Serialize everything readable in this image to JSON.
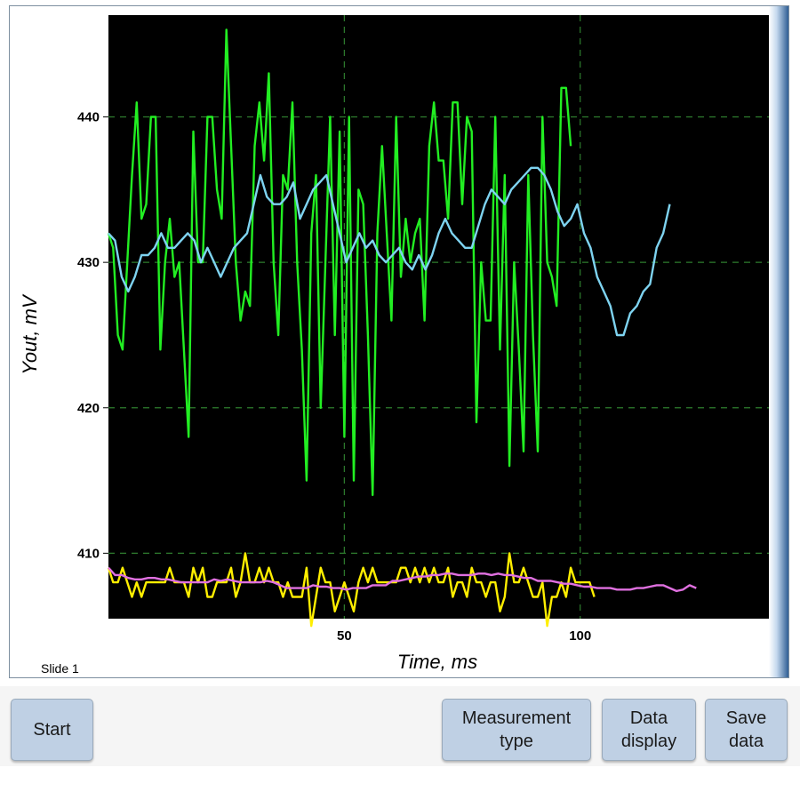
{
  "slide_label": "Slide 1",
  "buttons": {
    "start": "Start",
    "measurement_type": "Measurement\ntype",
    "data_display": "Data\ndisplay",
    "save_data": "Save\ndata"
  },
  "chart_data": {
    "type": "line",
    "xlabel": "Time, ms",
    "ylabel": "Yout, mV",
    "xlim": [
      0,
      140
    ],
    "ylim": [
      405.5,
      447
    ],
    "x_ticks": [
      50,
      100
    ],
    "y_ticks": [
      410,
      420,
      430,
      440
    ],
    "grid": true,
    "colors": {
      "background": "#000000",
      "grid": "#2e7d2e",
      "raw_top": "#22ee22",
      "avg_top": "#7ed3f0",
      "raw_bottom": "#ffee00",
      "avg_bottom": "#e070e0"
    },
    "series": [
      {
        "key": "raw_top",
        "x_start": 0,
        "x_step": 1,
        "values": [
          432,
          431,
          425,
          424,
          430,
          436,
          441,
          433,
          434,
          440,
          440,
          424,
          430,
          433,
          429,
          430,
          424,
          418,
          439,
          430,
          430,
          440,
          440,
          435,
          433,
          446,
          438,
          430,
          426,
          428,
          427,
          438,
          441,
          437,
          443,
          430,
          425,
          436,
          435,
          441,
          430,
          424,
          415,
          432,
          436,
          420,
          430,
          440,
          425,
          439,
          418,
          440,
          415,
          435,
          434,
          425,
          414,
          432,
          438,
          432,
          426,
          440,
          429,
          433,
          430,
          432,
          433,
          426,
          438,
          441,
          437,
          437,
          433,
          441,
          441,
          434,
          440,
          439,
          419,
          430,
          426,
          426,
          440,
          424,
          436,
          416,
          430,
          424,
          417,
          436,
          425,
          417,
          440,
          430,
          429,
          427,
          442,
          442,
          438
        ]
      },
      {
        "key": "avg_top",
        "x_start": 0,
        "x_step": 1.4,
        "values": [
          432,
          431.5,
          429,
          428,
          429,
          430.5,
          430.5,
          431,
          432,
          431,
          431,
          431.5,
          432,
          431.5,
          430,
          431,
          430,
          429,
          430,
          431,
          431.5,
          432,
          434,
          436,
          434.5,
          434,
          434,
          434.5,
          435.5,
          433,
          434,
          435,
          435.5,
          436,
          434,
          432,
          430,
          431,
          432,
          431,
          431.5,
          430.5,
          430,
          430.5,
          431,
          430,
          429.5,
          430.5,
          429.5,
          430.5,
          432,
          433,
          432,
          431.5,
          431,
          431,
          432.5,
          434,
          435,
          434.5,
          434,
          435,
          435.5,
          436,
          436.5,
          436.5,
          436,
          435,
          433.5,
          432.5,
          433,
          434,
          432,
          431,
          429,
          428,
          427,
          425,
          425,
          426.5,
          427,
          428,
          428.5,
          431,
          432,
          434
        ]
      },
      {
        "key": "raw_bottom",
        "x_start": 0,
        "x_step": 1,
        "values": [
          409,
          408,
          408,
          409,
          408,
          407,
          408,
          407,
          408,
          408,
          408,
          408,
          408,
          409,
          408,
          408,
          408,
          407,
          409,
          408,
          409,
          407,
          407,
          408,
          408,
          408,
          409,
          407,
          408,
          410,
          408,
          408,
          409,
          408,
          409,
          408,
          408,
          407,
          408,
          407,
          407,
          407,
          409,
          405,
          407,
          409,
          408,
          408,
          406,
          407,
          408,
          407,
          406,
          408,
          409,
          408,
          409,
          408,
          408,
          408,
          408,
          408,
          409,
          409,
          408,
          409,
          408,
          409,
          408,
          409,
          408,
          408,
          409,
          407,
          408,
          408,
          407,
          409,
          408,
          408,
          407,
          408,
          408,
          406,
          407,
          410,
          408,
          408,
          409,
          408,
          407,
          407,
          408,
          405,
          407,
          407,
          408,
          407,
          409,
          408,
          408,
          408,
          408,
          407
        ]
      },
      {
        "key": "avg_bottom",
        "x_start": 0,
        "x_step": 1.4,
        "values": [
          409,
          408.5,
          408.5,
          408.3,
          408.2,
          408.2,
          408.3,
          408.3,
          408.2,
          408.2,
          408.1,
          408,
          408,
          408,
          408,
          408,
          408.2,
          408.1,
          408.2,
          408.1,
          408,
          408,
          408,
          408,
          408.1,
          408,
          407.8,
          407.6,
          407.6,
          407.6,
          407.6,
          407.8,
          407.7,
          407.7,
          407.6,
          407.6,
          407.5,
          407.6,
          407.6,
          407.6,
          407.8,
          407.8,
          407.8,
          408.1,
          408.1,
          408.2,
          408.3,
          408.4,
          408.4,
          408.5,
          408.5,
          408.6,
          408.6,
          408.5,
          408.5,
          408.5,
          408.6,
          408.6,
          408.5,
          408.6,
          408.5,
          408.5,
          408.4,
          408.3,
          408.3,
          408.1,
          408.1,
          408.1,
          408,
          407.9,
          407.9,
          407.8,
          407.7,
          407.7,
          407.6,
          407.6,
          407.6,
          407.5,
          407.5,
          407.5,
          407.6,
          407.6,
          407.7,
          407.8,
          407.8,
          407.6,
          407.4,
          407.5,
          407.8,
          407.6
        ]
      }
    ]
  }
}
